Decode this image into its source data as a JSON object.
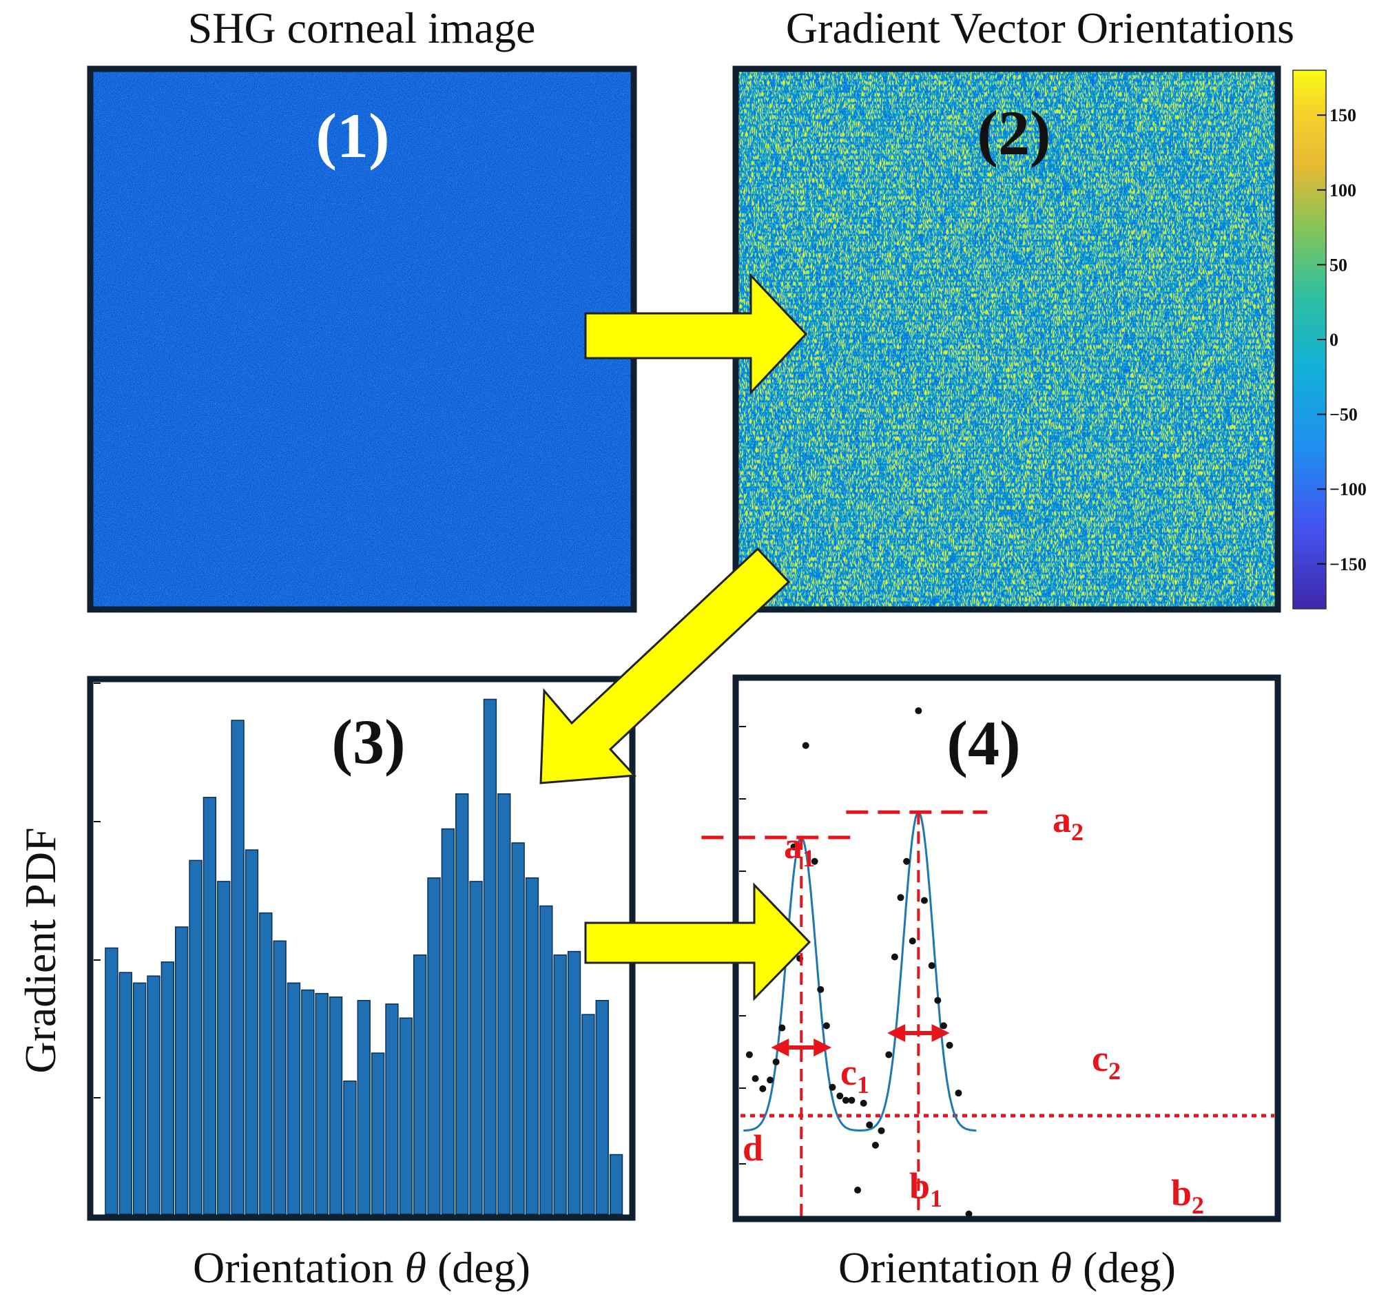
{
  "titles": {
    "panel1": "SHG corneal image",
    "panel2": "Gradient Vector Orientations"
  },
  "panel_labels": {
    "p1": "(1)",
    "p2": "(2)",
    "p3": "(3)",
    "p4": "(4)"
  },
  "axis_labels": {
    "y3": "Gradient PDF",
    "x3_prefix": "Orientation ",
    "x3_theta": "θ",
    "x3_suffix": " (deg)",
    "x4_prefix": "Orientation ",
    "x4_theta": "θ",
    "x4_suffix": " (deg)"
  },
  "colorbar": {
    "ticks": [
      "150",
      "100",
      "50",
      "0",
      "−50",
      "−100",
      "−150"
    ],
    "range": [
      -180,
      180
    ]
  },
  "annotations": {
    "a": "a",
    "b": "b",
    "c": "c",
    "d": "d",
    "sub1": "1",
    "sub2": "2"
  },
  "colors": {
    "frame": "#102030",
    "arrow_fill": "#ffff00",
    "arrow_stroke": "#222222",
    "bar": "#1f6fb4",
    "fit_line": "#1f77b4",
    "annotation_red": "#e8141b",
    "shg_base": "#1a4be0"
  },
  "chart_data": [
    {
      "type": "bar",
      "title": "(3)",
      "ylabel": "Gradient PDF",
      "xlabel": "Orientation θ (deg)",
      "values": [
        38.0,
        34.5,
        33.0,
        34.0,
        36.0,
        41.0,
        50.5,
        59.5,
        47.5,
        70.5,
        52.0,
        43.0,
        39.0,
        33.0,
        32.0,
        31.5,
        31.0,
        19.0,
        30.5,
        23.0,
        30.0,
        28.0,
        37.0,
        48.0,
        55.0,
        60.0,
        47.5,
        73.5,
        60.0,
        53.0,
        48.0,
        44.0,
        37.0,
        37.5,
        28.5,
        30.5,
        8.5
      ],
      "ylim": [
        0,
        76
      ]
    },
    {
      "type": "scatter",
      "title": "(4)",
      "xlabel": "Orientation θ (deg)",
      "xlim": [
        -90,
        90
      ],
      "ylim": [
        -0.12,
        0.62
      ],
      "points": [
        {
          "x": -87,
          "y": 0.105
        },
        {
          "x": -85,
          "y": 0.072
        },
        {
          "x": -82.5,
          "y": 0.058
        },
        {
          "x": -80,
          "y": 0.07
        },
        {
          "x": -78,
          "y": 0.095
        },
        {
          "x": -76,
          "y": 0.142
        },
        {
          "x": -74,
          "y": 0.268
        },
        {
          "x": -72,
          "y": 0.392
        },
        {
          "x": -70,
          "y": 0.238
        },
        {
          "x": -68,
          "y": 0.532
        },
        {
          "x": -65,
          "y": 0.372
        },
        {
          "x": -63,
          "y": 0.195
        },
        {
          "x": -61,
          "y": 0.145
        },
        {
          "x": -59,
          "y": 0.06
        },
        {
          "x": -56.5,
          "y": 0.048
        },
        {
          "x": -54.5,
          "y": 0.042
        },
        {
          "x": -52.5,
          "y": 0.042
        },
        {
          "x": -50.5,
          "y": -0.082
        },
        {
          "x": -48.5,
          "y": 0.038
        },
        {
          "x": -46.5,
          "y": 0.008
        },
        {
          "x": -44.5,
          "y": -0.02
        },
        {
          "x": -42.5,
          "y": 0.0
        },
        {
          "x": -40,
          "y": 0.105
        },
        {
          "x": -38,
          "y": 0.24
        },
        {
          "x": -36,
          "y": 0.322
        },
        {
          "x": -34,
          "y": 0.372
        },
        {
          "x": -32,
          "y": 0.262
        },
        {
          "x": -30,
          "y": 0.58
        },
        {
          "x": -28,
          "y": 0.318
        },
        {
          "x": -25.5,
          "y": 0.228
        },
        {
          "x": -23.5,
          "y": 0.18
        },
        {
          "x": -21.5,
          "y": 0.145
        },
        {
          "x": -19.5,
          "y": 0.118
        },
        {
          "x": -16.5,
          "y": 0.052
        },
        {
          "x": -13,
          "y": -0.115
        }
      ],
      "fit": {
        "model": "two_gaussians",
        "a1": 0.405,
        "b1": -69.5,
        "c1": 5.0,
        "a2": 0.44,
        "b2": -30.0,
        "c2": 5.0,
        "d": 0.0
      }
    }
  ]
}
